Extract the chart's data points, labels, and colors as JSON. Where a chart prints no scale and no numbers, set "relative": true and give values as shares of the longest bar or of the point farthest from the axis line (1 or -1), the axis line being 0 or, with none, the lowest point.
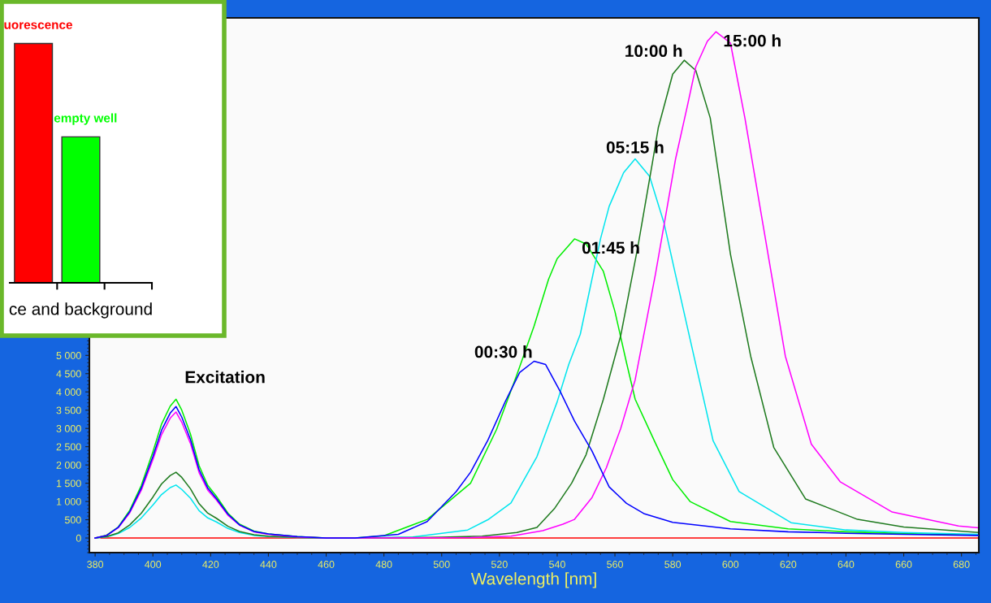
{
  "chart_data": [
    {
      "type": "line",
      "xlabel": "Wavelength [nm]",
      "xlim": [
        378,
        686
      ],
      "ylim": [
        -400,
        14240
      ],
      "xticks": [
        380,
        400,
        420,
        440,
        460,
        480,
        500,
        520,
        540,
        560,
        580,
        600,
        620,
        640,
        660,
        680
      ],
      "yticks": [
        0,
        500,
        {
          "value": 1000,
          "label": "1 000"
        },
        {
          "value": 1500,
          "label": "1 500"
        },
        {
          "value": 2000,
          "label": "2 000"
        },
        {
          "value": 2500,
          "label": "2 500"
        },
        {
          "value": 3000,
          "label": "3 000"
        },
        {
          "value": 3500,
          "label": "3 500"
        },
        {
          "value": 4000,
          "label": "4 000"
        },
        {
          "value": 4500,
          "label": "4 500"
        },
        {
          "value": 5000,
          "label": "5 000"
        }
      ],
      "grid": false,
      "legend": false,
      "marker": "none",
      "line_style": "solid",
      "series": [
        {
          "color": "#ff0000",
          "x": [
            382,
            686
          ],
          "values": [
            0,
            0
          ]
        },
        {
          "color": "#0000ff",
          "name": "00:30 h",
          "x": [
            380,
            384,
            388,
            392,
            396,
            400,
            403,
            406,
            408,
            410,
            413,
            416,
            419,
            422,
            426,
            430,
            435,
            440,
            450,
            460,
            470,
            485,
            495,
            505,
            510,
            516,
            522,
            527,
            532,
            536,
            541,
            546,
            552,
            558,
            564,
            570,
            580,
            600,
            620,
            640,
            660,
            686
          ],
          "values": [
            0,
            70,
            290,
            720,
            1370,
            2230,
            2950,
            3420,
            3600,
            3310,
            2700,
            1870,
            1370,
            1080,
            650,
            360,
            180,
            110,
            40,
            0,
            0,
            100,
            450,
            1270,
            1800,
            2680,
            3730,
            4530,
            4840,
            4750,
            4020,
            3200,
            2390,
            1400,
            950,
            670,
            430,
            250,
            170,
            130,
            100,
            70
          ]
        },
        {
          "color": "#00ee00",
          "name": "01:45 h",
          "x": [
            380,
            384,
            388,
            392,
            396,
            400,
            403,
            406,
            408,
            410,
            413,
            416,
            419,
            422,
            426,
            430,
            435,
            440,
            450,
            460,
            470,
            480,
            495,
            510,
            519,
            526,
            532,
            537,
            540,
            546,
            550,
            556,
            560,
            564,
            567,
            574,
            580,
            586,
            600,
            620,
            640,
            660,
            686
          ],
          "values": [
            0,
            80,
            300,
            760,
            1440,
            2360,
            3120,
            3610,
            3800,
            3500,
            2850,
            1980,
            1440,
            1140,
            680,
            380,
            190,
            110,
            40,
            0,
            0,
            60,
            510,
            1500,
            2970,
            4460,
            5800,
            7080,
            7650,
            8190,
            8050,
            7300,
            6200,
            4800,
            3800,
            2600,
            1600,
            1000,
            450,
            250,
            170,
            120,
            80
          ]
        },
        {
          "color": "#00e5ee",
          "name": "05:15 h",
          "x": [
            380,
            384,
            388,
            392,
            396,
            400,
            403,
            406,
            408,
            410,
            413,
            416,
            419,
            422,
            426,
            430,
            435,
            440,
            450,
            460,
            470,
            490,
            509,
            516,
            524,
            533,
            540,
            544,
            548,
            555,
            558,
            563,
            567,
            572,
            577,
            581,
            586,
            594,
            603,
            621,
            640,
            660,
            686
          ],
          "values": [
            0,
            30,
            120,
            290,
            550,
            900,
            1190,
            1380,
            1450,
            1330,
            1090,
            750,
            550,
            440,
            260,
            150,
            70,
            40,
            10,
            0,
            0,
            30,
            220,
            500,
            960,
            2230,
            3730,
            4750,
            5580,
            8190,
            9080,
            10000,
            10380,
            9900,
            8620,
            7200,
            5450,
            2660,
            1270,
            420,
            220,
            150,
            100
          ]
        },
        {
          "color": "#1e7a1e",
          "name": "10:00 h",
          "x": [
            380,
            384,
            388,
            392,
            396,
            400,
            403,
            406,
            408,
            410,
            413,
            416,
            419,
            422,
            426,
            430,
            435,
            440,
            450,
            460,
            470,
            500,
            514,
            526,
            533,
            539,
            545,
            550,
            556,
            562,
            568,
            573,
            575,
            580,
            584,
            588,
            593,
            600,
            607,
            615,
            626,
            644,
            660,
            686
          ],
          "values": [
            0,
            40,
            140,
            360,
            680,
            1120,
            1480,
            1710,
            1800,
            1660,
            1350,
            940,
            680,
            540,
            320,
            180,
            90,
            50,
            20,
            0,
            0,
            20,
            50,
            150,
            290,
            800,
            1500,
            2280,
            3800,
            5540,
            8000,
            10290,
            11230,
            12700,
            13080,
            12800,
            11500,
            7770,
            4980,
            2480,
            1070,
            510,
            300,
            150
          ]
        },
        {
          "color": "#ff00ff",
          "name": "15:00 h",
          "x": [
            380,
            384,
            388,
            392,
            396,
            400,
            403,
            406,
            408,
            410,
            413,
            416,
            419,
            422,
            426,
            430,
            435,
            440,
            450,
            460,
            470,
            510,
            524,
            535,
            542,
            546,
            552,
            557,
            562,
            567,
            574,
            581,
            585,
            588,
            592,
            595,
            600,
            605,
            612,
            619,
            628,
            638,
            656,
            679,
            686
          ],
          "values": [
            0,
            70,
            280,
            690,
            1310,
            2140,
            2830,
            3280,
            3450,
            3170,
            2590,
            1790,
            1310,
            1040,
            620,
            350,
            170,
            100,
            30,
            0,
            0,
            10,
            50,
            200,
            380,
            510,
            1100,
            1920,
            3000,
            4330,
            7210,
            10380,
            11800,
            12900,
            13600,
            13860,
            13550,
            11500,
            8240,
            4980,
            2570,
            1540,
            710,
            330,
            280
          ]
        }
      ],
      "annotations": [
        "Excitation"
      ]
    },
    {
      "type": "bar",
      "relative": true,
      "categories": [
        null,
        null
      ],
      "values": [
        1,
        0.61
      ],
      "colors": [
        "#ff0000",
        "#00ff00"
      ],
      "xlabel": "ce and background",
      "annotations": [
        "uorescence",
        "empty well"
      ]
    }
  ]
}
